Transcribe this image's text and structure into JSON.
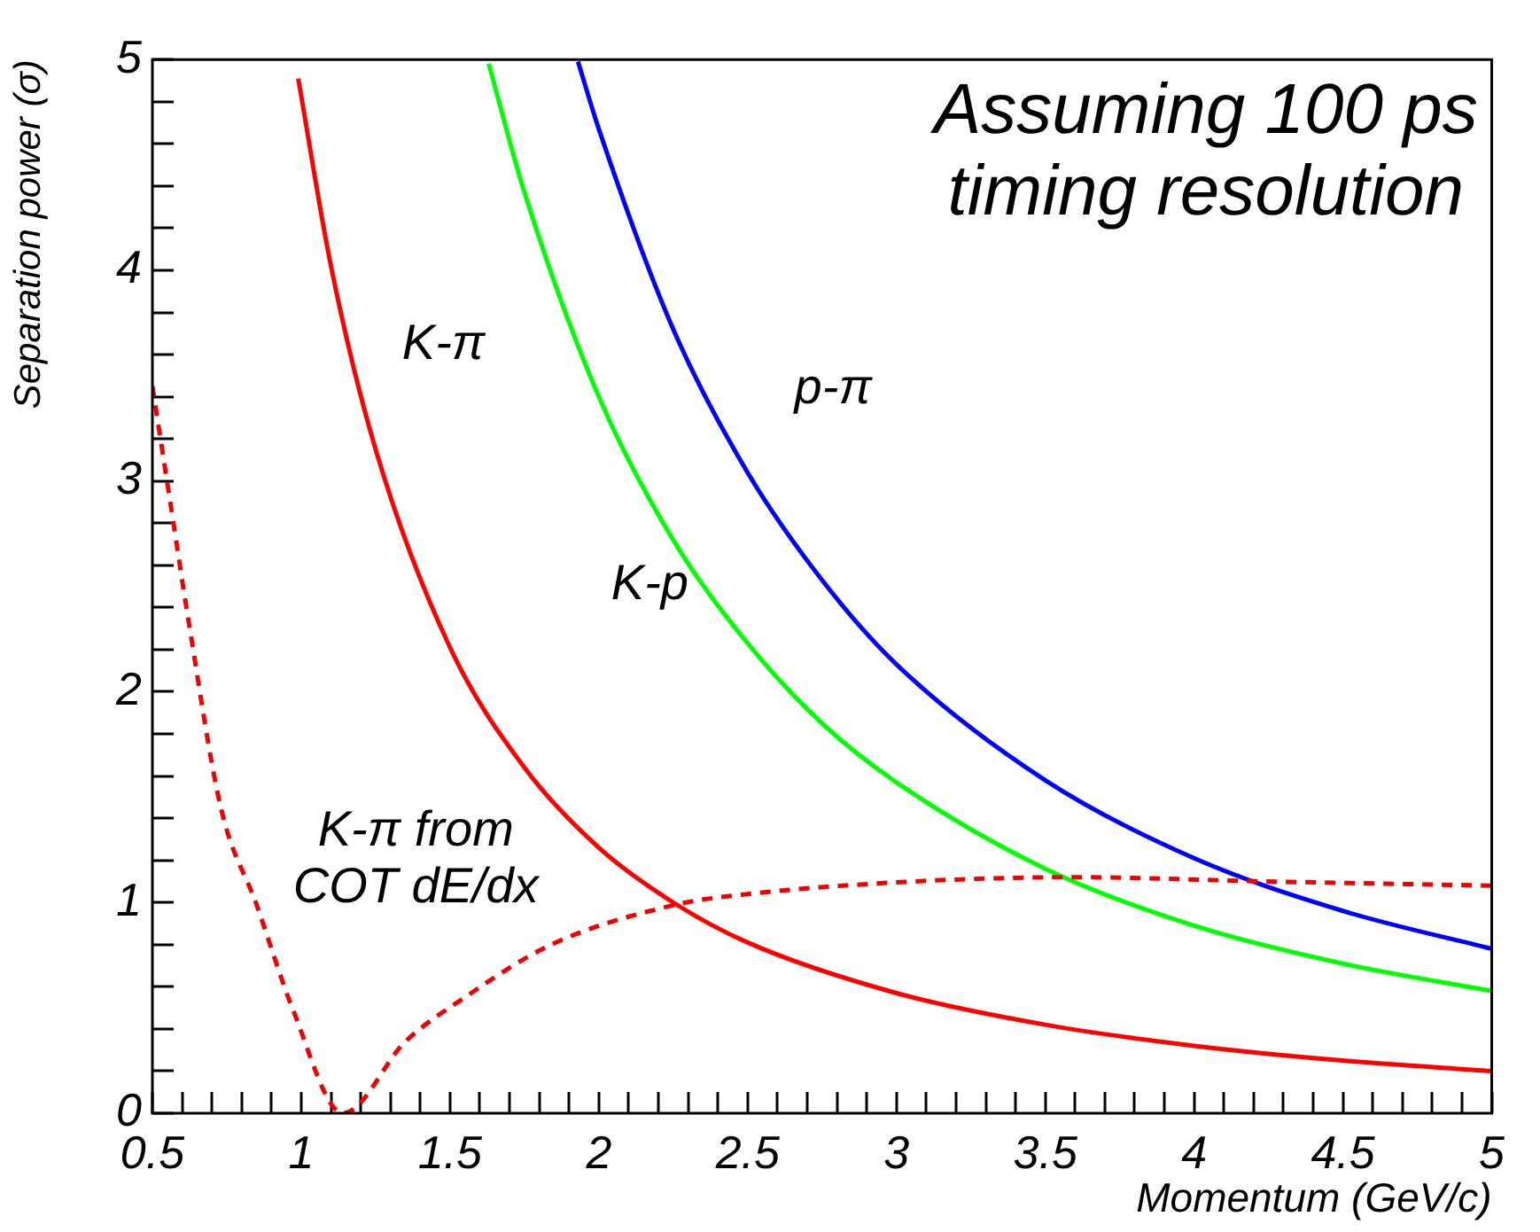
{
  "chart_data": {
    "type": "line",
    "xlabel": "Momentum (GeV/c)",
    "ylabel": "Separation power (σ)",
    "xlim": [
      0.5,
      5
    ],
    "ylim": [
      0,
      5
    ],
    "xticks": [
      0.5,
      {
        "value": 0.6,
        "label": null
      },
      {
        "value": 0.7,
        "label": null
      },
      {
        "value": 0.8,
        "label": null
      },
      {
        "value": 0.9,
        "label": null
      },
      1,
      {
        "value": 1.1,
        "label": null
      },
      {
        "value": 1.2,
        "label": null
      },
      {
        "value": 1.3,
        "label": null
      },
      {
        "value": 1.4,
        "label": null
      },
      1.5,
      {
        "value": 1.6,
        "label": null
      },
      {
        "value": 1.7,
        "label": null
      },
      {
        "value": 1.8,
        "label": null
      },
      {
        "value": 1.9,
        "label": null
      },
      2,
      {
        "value": 2.1,
        "label": null
      },
      {
        "value": 2.2,
        "label": null
      },
      {
        "value": 2.3,
        "label": null
      },
      {
        "value": 2.4,
        "label": null
      },
      2.5,
      {
        "value": 2.6,
        "label": null
      },
      {
        "value": 2.7,
        "label": null
      },
      {
        "value": 2.8,
        "label": null
      },
      {
        "value": 2.9,
        "label": null
      },
      3,
      {
        "value": 3.1,
        "label": null
      },
      {
        "value": 3.2,
        "label": null
      },
      {
        "value": 3.3,
        "label": null
      },
      {
        "value": 3.4,
        "label": null
      },
      3.5,
      {
        "value": 3.6,
        "label": null
      },
      {
        "value": 3.7,
        "label": null
      },
      {
        "value": 3.8,
        "label": null
      },
      {
        "value": 3.9,
        "label": null
      },
      4,
      {
        "value": 4.1,
        "label": null
      },
      {
        "value": 4.2,
        "label": null
      },
      {
        "value": 4.3,
        "label": null
      },
      {
        "value": 4.4,
        "label": null
      },
      4.5,
      {
        "value": 4.6,
        "label": null
      },
      {
        "value": 4.7,
        "label": null
      },
      {
        "value": 4.8,
        "label": null
      },
      {
        "value": 4.9,
        "label": null
      },
      5
    ],
    "yticks": [
      0,
      {
        "value": 0.2,
        "label": null
      },
      {
        "value": 0.4,
        "label": null
      },
      {
        "value": 0.6,
        "label": null
      },
      {
        "value": 0.8,
        "label": null
      },
      1,
      {
        "value": 1.2,
        "label": null
      },
      {
        "value": 1.4,
        "label": null
      },
      {
        "value": 1.6,
        "label": null
      },
      {
        "value": 1.8,
        "label": null
      },
      2,
      {
        "value": 2.2,
        "label": null
      },
      {
        "value": 2.4,
        "label": null
      },
      {
        "value": 2.6,
        "label": null
      },
      {
        "value": 2.8,
        "label": null
      },
      3,
      {
        "value": 3.2,
        "label": null
      },
      {
        "value": 3.4,
        "label": null
      },
      {
        "value": 3.6,
        "label": null
      },
      {
        "value": 3.8,
        "label": null
      },
      4,
      {
        "value": 4.2,
        "label": null
      },
      {
        "value": 4.4,
        "label": null
      },
      {
        "value": 4.6,
        "label": null
      },
      {
        "value": 4.8,
        "label": null
      },
      5
    ],
    "grid": false,
    "legend": false,
    "marker": "none",
    "series": [
      {
        "color": "#ff0000",
        "line_style": "solid",
        "x": [
          0.99,
          1.1,
          1.25,
          1.5,
          1.75,
          2,
          2.25,
          2.5,
          3,
          3.5,
          4,
          4.5,
          5
        ],
        "values": [
          4.91,
          4.02,
          3.15,
          2.21,
          1.64,
          1.26,
          1.0,
          0.81,
          0.57,
          0.42,
          0.32,
          0.25,
          0.2
        ]
      },
      {
        "color": "#00ff00",
        "line_style": "solid",
        "x": [
          1.63,
          1.75,
          2,
          2.25,
          2.5,
          2.75,
          3,
          3.5,
          4,
          4.5,
          5
        ],
        "values": [
          4.98,
          4.37,
          3.4,
          2.72,
          2.23,
          1.85,
          1.57,
          1.16,
          0.89,
          0.71,
          0.58
        ]
      },
      {
        "color": "#0000ff",
        "line_style": "solid",
        "x": [
          1.93,
          2,
          2.25,
          2.5,
          2.75,
          3,
          3.5,
          4,
          4.5,
          5
        ],
        "values": [
          4.99,
          4.67,
          3.72,
          3.04,
          2.53,
          2.13,
          1.58,
          1.21,
          0.96,
          0.78
        ]
      },
      {
        "color": "#f00000",
        "line_style": "dashed",
        "x": [
          0.5,
          0.56,
          0.62,
          0.73,
          0.85,
          0.97,
          1.14,
          1.35,
          1.55,
          1.84,
          2.26,
          2.5,
          3.06,
          3.6,
          4.24,
          5
        ],
        "values": [
          3.45,
          2.9,
          2.35,
          1.45,
          0.99,
          0.5,
          0.0,
          0.34,
          0.55,
          0.8,
          0.99,
          1.04,
          1.1,
          1.12,
          1.1,
          1.08
        ]
      }
    ],
    "annotations": [
      "Assuming 100 ps\ntiming resolution",
      "K-π",
      "p-π",
      "K-p",
      "K-π from\nCOT dE/dx"
    ]
  }
}
